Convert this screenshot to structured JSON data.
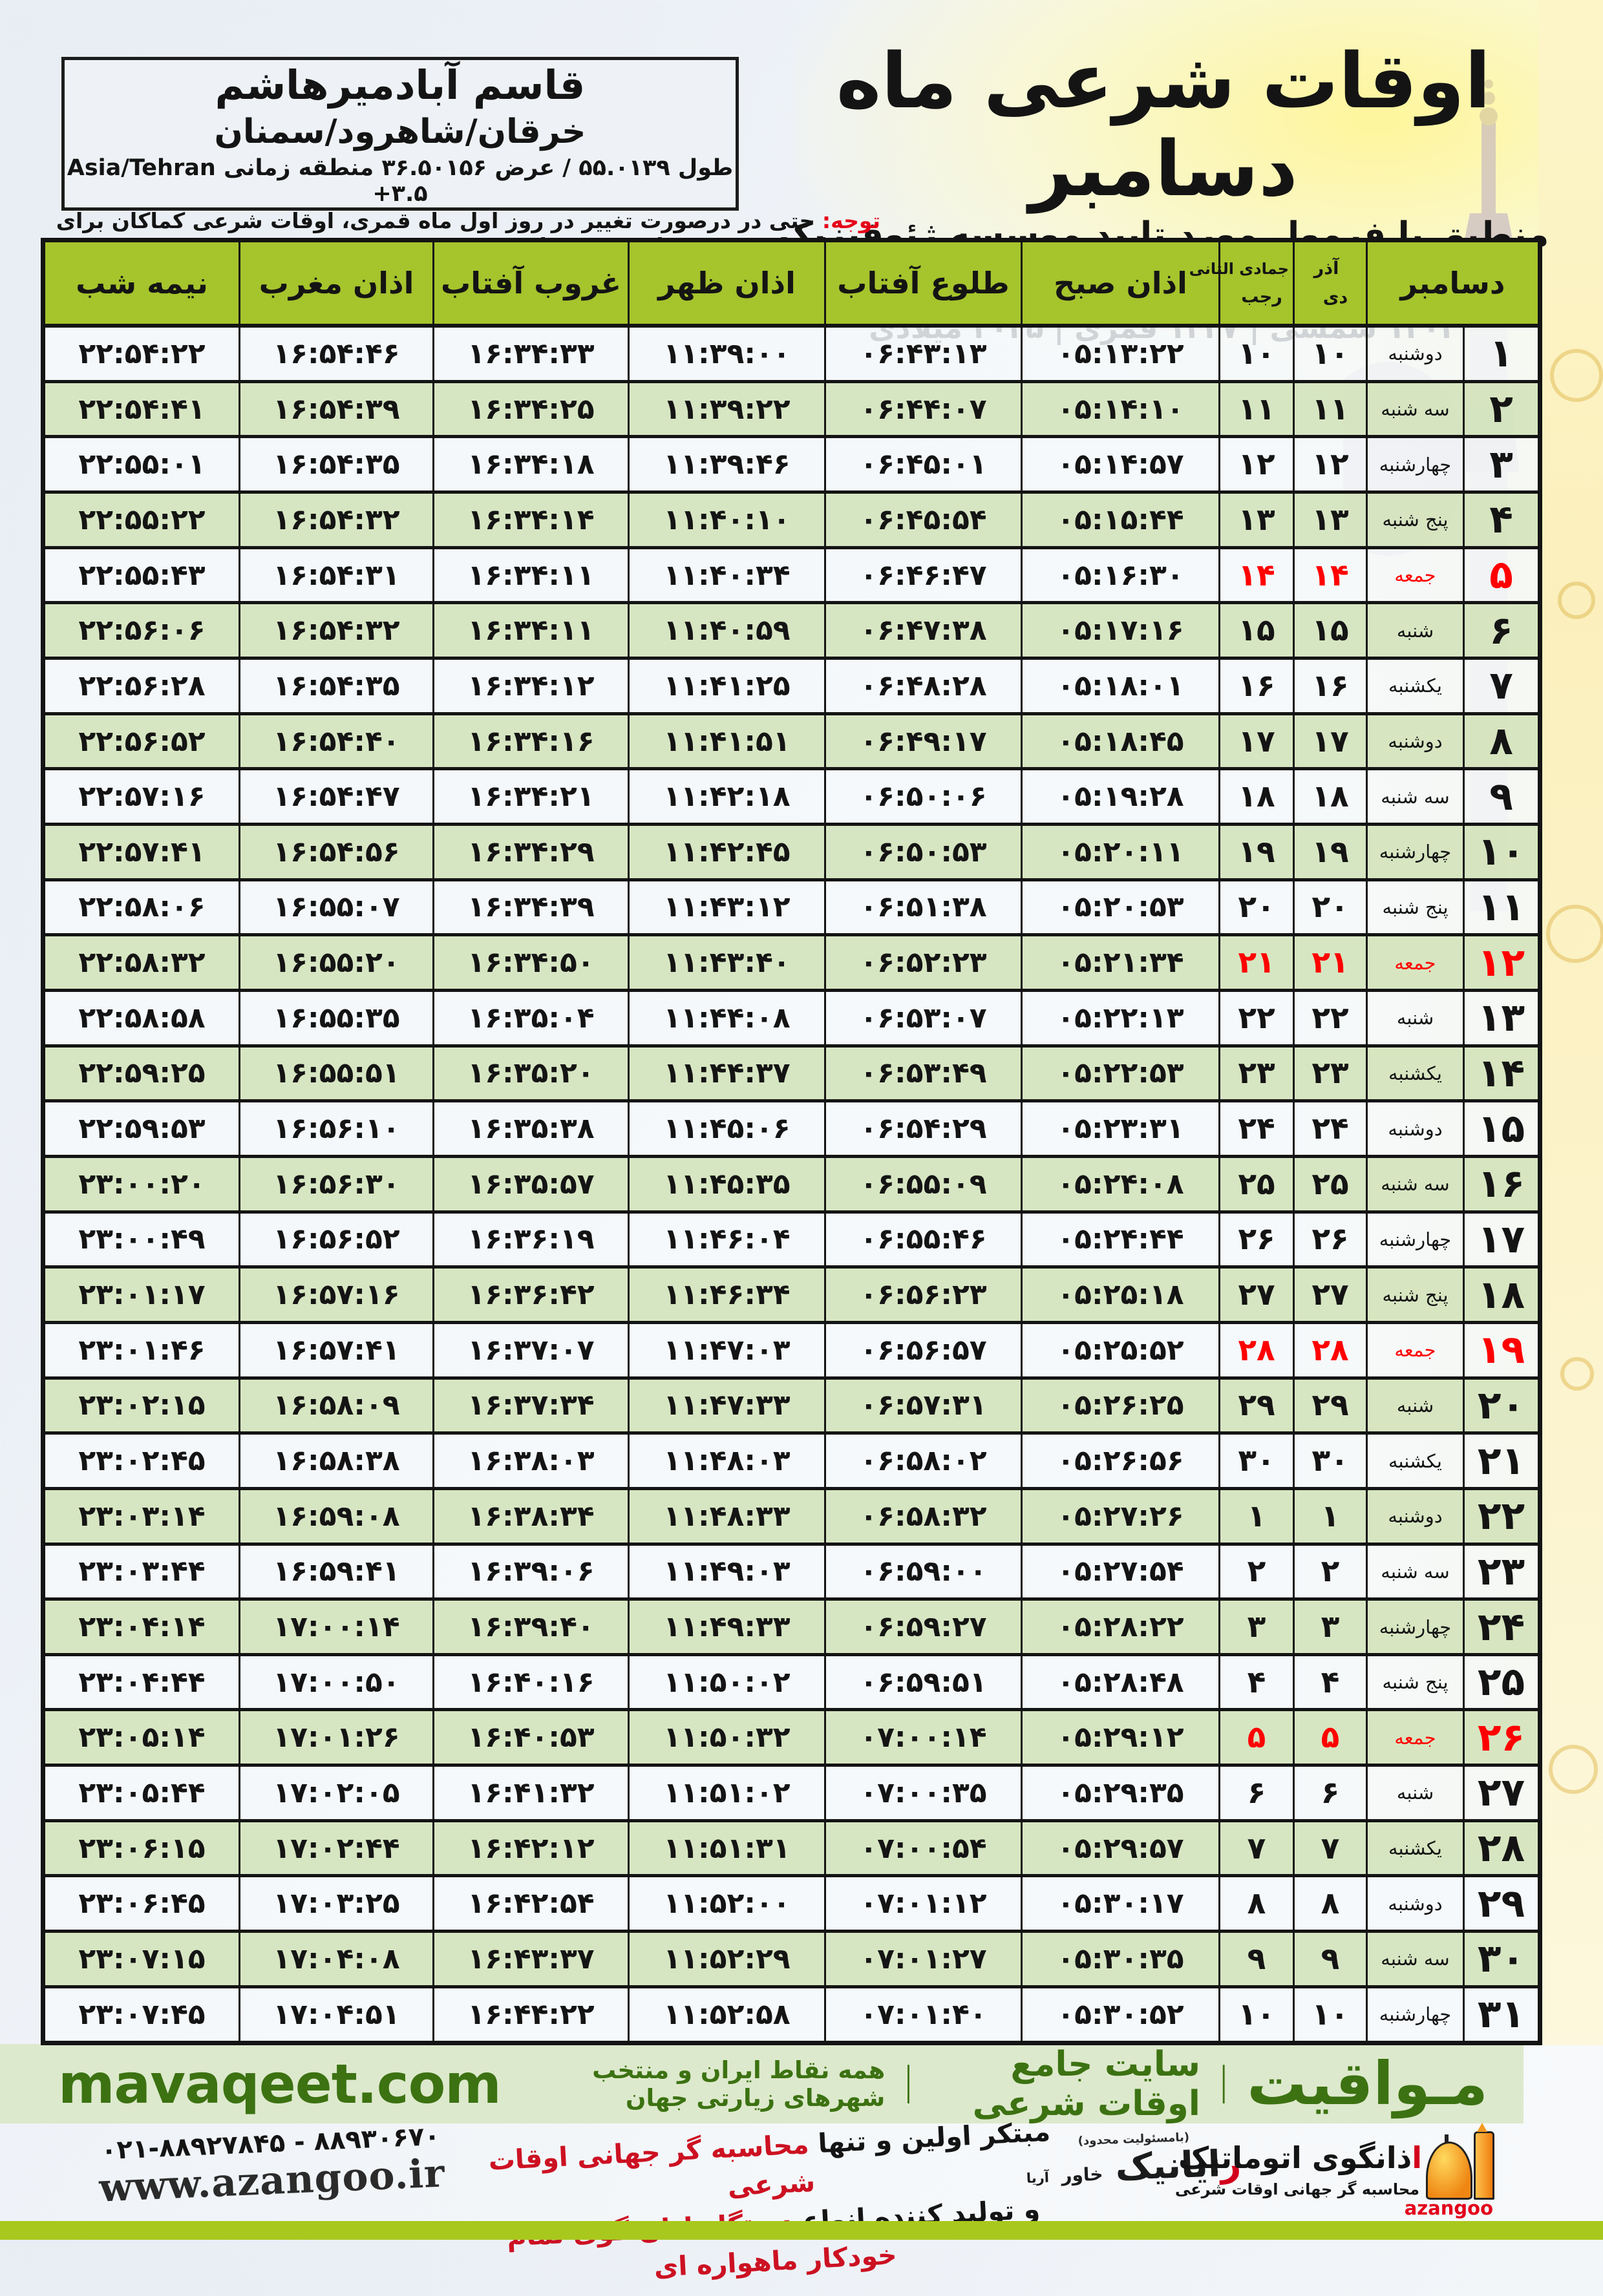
{
  "colors": {
    "header_green": "#a6c42c",
    "row_green": "#d5e5c0",
    "friday_red": "#ff0000",
    "notice_red": "#e50019",
    "footer_bg": "#dde9cc",
    "footer_green": "#3c7212",
    "bottom_lime": "#a9c81d"
  },
  "header": {
    "title": "اوقات شرعی ماه دسامبر",
    "subtitle": "منطبق با فرمول مورد تایید موسسه ژئوفیزیک دانشگاه تهران",
    "era_line": "۱۴۰۴ شمسی | ۱۴۴۷ قمری | ۲۰۲۵ میلادی"
  },
  "location": {
    "name": "قاسم آبادمیرهاشم",
    "region": "خرقان/شاهرود/سمنان",
    "coords": "طول ۵۵.۰۱۳۹ / عرض ۳۶.۵۰۱۵۶ منطقه زمانی",
    "timezone": "Asia/Tehran +۳.۵"
  },
  "notice": {
    "label": "توجه:",
    "text": " حتی در درصورت تغییر در روز اول ماه قمری، اوقات شرعی کماکان برای روزهای شمسی و میلادی معتبر است."
  },
  "table": {
    "headers": {
      "december": "دسامبر",
      "persian_top": "آذر",
      "persian_bottom": "دی",
      "hijri_top": "جمادی الثانی",
      "hijri_bottom": "رجب",
      "fajr": "اذان صبح",
      "sunrise": "طلوع آفتاب",
      "dhuhr": "اذان ظهر",
      "sunset": "غروب آفتاب",
      "maghrib": "اذان مغرب",
      "midnight": "نیمه شب"
    },
    "rows": [
      {
        "day": "۱",
        "weekday": "دوشنبه",
        "pday": "۱۰",
        "hday": "۱۰",
        "fajr": "۰۵:۱۳:۲۲",
        "sunrise": "۰۶:۴۳:۱۳",
        "dhuhr": "۱۱:۳۹:۰۰",
        "sunset": "۱۶:۳۴:۳۳",
        "maghrib": "۱۶:۵۴:۴۶",
        "midnight": "۲۲:۵۴:۲۲",
        "friday": false
      },
      {
        "day": "۲",
        "weekday": "سه شنبه",
        "pday": "۱۱",
        "hday": "۱۱",
        "fajr": "۰۵:۱۴:۱۰",
        "sunrise": "۰۶:۴۴:۰۷",
        "dhuhr": "۱۱:۳۹:۲۲",
        "sunset": "۱۶:۳۴:۲۵",
        "maghrib": "۱۶:۵۴:۳۹",
        "midnight": "۲۲:۵۴:۴۱",
        "friday": false
      },
      {
        "day": "۳",
        "weekday": "چهارشنبه",
        "pday": "۱۲",
        "hday": "۱۲",
        "fajr": "۰۵:۱۴:۵۷",
        "sunrise": "۰۶:۴۵:۰۱",
        "dhuhr": "۱۱:۳۹:۴۶",
        "sunset": "۱۶:۳۴:۱۸",
        "maghrib": "۱۶:۵۴:۳۵",
        "midnight": "۲۲:۵۵:۰۱",
        "friday": false
      },
      {
        "day": "۴",
        "weekday": "پنج شنبه",
        "pday": "۱۳",
        "hday": "۱۳",
        "fajr": "۰۵:۱۵:۴۴",
        "sunrise": "۰۶:۴۵:۵۴",
        "dhuhr": "۱۱:۴۰:۱۰",
        "sunset": "۱۶:۳۴:۱۴",
        "maghrib": "۱۶:۵۴:۳۲",
        "midnight": "۲۲:۵۵:۲۲",
        "friday": false
      },
      {
        "day": "۵",
        "weekday": "جمعه",
        "pday": "۱۴",
        "hday": "۱۴",
        "fajr": "۰۵:۱۶:۳۰",
        "sunrise": "۰۶:۴۶:۴۷",
        "dhuhr": "۱۱:۴۰:۳۴",
        "sunset": "۱۶:۳۴:۱۱",
        "maghrib": "۱۶:۵۴:۳۱",
        "midnight": "۲۲:۵۵:۴۳",
        "friday": true
      },
      {
        "day": "۶",
        "weekday": "شنبه",
        "pday": "۱۵",
        "hday": "۱۵",
        "fajr": "۰۵:۱۷:۱۶",
        "sunrise": "۰۶:۴۷:۳۸",
        "dhuhr": "۱۱:۴۰:۵۹",
        "sunset": "۱۶:۳۴:۱۱",
        "maghrib": "۱۶:۵۴:۳۲",
        "midnight": "۲۲:۵۶:۰۶",
        "friday": false
      },
      {
        "day": "۷",
        "weekday": "یکشنبه",
        "pday": "۱۶",
        "hday": "۱۶",
        "fajr": "۰۵:۱۸:۰۱",
        "sunrise": "۰۶:۴۸:۲۸",
        "dhuhr": "۱۱:۴۱:۲۵",
        "sunset": "۱۶:۳۴:۱۲",
        "maghrib": "۱۶:۵۴:۳۵",
        "midnight": "۲۲:۵۶:۲۸",
        "friday": false
      },
      {
        "day": "۸",
        "weekday": "دوشنبه",
        "pday": "۱۷",
        "hday": "۱۷",
        "fajr": "۰۵:۱۸:۴۵",
        "sunrise": "۰۶:۴۹:۱۷",
        "dhuhr": "۱۱:۴۱:۵۱",
        "sunset": "۱۶:۳۴:۱۶",
        "maghrib": "۱۶:۵۴:۴۰",
        "midnight": "۲۲:۵۶:۵۲",
        "friday": false
      },
      {
        "day": "۹",
        "weekday": "سه شنبه",
        "pday": "۱۸",
        "hday": "۱۸",
        "fajr": "۰۵:۱۹:۲۸",
        "sunrise": "۰۶:۵۰:۰۶",
        "dhuhr": "۱۱:۴۲:۱۸",
        "sunset": "۱۶:۳۴:۲۱",
        "maghrib": "۱۶:۵۴:۴۷",
        "midnight": "۲۲:۵۷:۱۶",
        "friday": false
      },
      {
        "day": "۱۰",
        "weekday": "چهارشنبه",
        "pday": "۱۹",
        "hday": "۱۹",
        "fajr": "۰۵:۲۰:۱۱",
        "sunrise": "۰۶:۵۰:۵۳",
        "dhuhr": "۱۱:۴۲:۴۵",
        "sunset": "۱۶:۳۴:۲۹",
        "maghrib": "۱۶:۵۴:۵۶",
        "midnight": "۲۲:۵۷:۴۱",
        "friday": false
      },
      {
        "day": "۱۱",
        "weekday": "پنج شنبه",
        "pday": "۲۰",
        "hday": "۲۰",
        "fajr": "۰۵:۲۰:۵۳",
        "sunrise": "۰۶:۵۱:۳۸",
        "dhuhr": "۱۱:۴۳:۱۲",
        "sunset": "۱۶:۳۴:۳۹",
        "maghrib": "۱۶:۵۵:۰۷",
        "midnight": "۲۲:۵۸:۰۶",
        "friday": false
      },
      {
        "day": "۱۲",
        "weekday": "جمعه",
        "pday": "۲۱",
        "hday": "۲۱",
        "fajr": "۰۵:۲۱:۳۴",
        "sunrise": "۰۶:۵۲:۲۳",
        "dhuhr": "۱۱:۴۳:۴۰",
        "sunset": "۱۶:۳۴:۵۰",
        "maghrib": "۱۶:۵۵:۲۰",
        "midnight": "۲۲:۵۸:۳۲",
        "friday": true
      },
      {
        "day": "۱۳",
        "weekday": "شنبه",
        "pday": "۲۲",
        "hday": "۲۲",
        "fajr": "۰۵:۲۲:۱۳",
        "sunrise": "۰۶:۵۳:۰۷",
        "dhuhr": "۱۱:۴۴:۰۸",
        "sunset": "۱۶:۳۵:۰۴",
        "maghrib": "۱۶:۵۵:۳۵",
        "midnight": "۲۲:۵۸:۵۸",
        "friday": false
      },
      {
        "day": "۱۴",
        "weekday": "یکشنبه",
        "pday": "۲۳",
        "hday": "۲۳",
        "fajr": "۰۵:۲۲:۵۳",
        "sunrise": "۰۶:۵۳:۴۹",
        "dhuhr": "۱۱:۴۴:۳۷",
        "sunset": "۱۶:۳۵:۲۰",
        "maghrib": "۱۶:۵۵:۵۱",
        "midnight": "۲۲:۵۹:۲۵",
        "friday": false
      },
      {
        "day": "۱۵",
        "weekday": "دوشنبه",
        "pday": "۲۴",
        "hday": "۲۴",
        "fajr": "۰۵:۲۳:۳۱",
        "sunrise": "۰۶:۵۴:۲۹",
        "dhuhr": "۱۱:۴۵:۰۶",
        "sunset": "۱۶:۳۵:۳۸",
        "maghrib": "۱۶:۵۶:۱۰",
        "midnight": "۲۲:۵۹:۵۳",
        "friday": false
      },
      {
        "day": "۱۶",
        "weekday": "سه شنبه",
        "pday": "۲۵",
        "hday": "۲۵",
        "fajr": "۰۵:۲۴:۰۸",
        "sunrise": "۰۶:۵۵:۰۹",
        "dhuhr": "۱۱:۴۵:۳۵",
        "sunset": "۱۶:۳۵:۵۷",
        "maghrib": "۱۶:۵۶:۳۰",
        "midnight": "۲۳:۰۰:۲۰",
        "friday": false
      },
      {
        "day": "۱۷",
        "weekday": "چهارشنبه",
        "pday": "۲۶",
        "hday": "۲۶",
        "fajr": "۰۵:۲۴:۴۴",
        "sunrise": "۰۶:۵۵:۴۶",
        "dhuhr": "۱۱:۴۶:۰۴",
        "sunset": "۱۶:۳۶:۱۹",
        "maghrib": "۱۶:۵۶:۵۲",
        "midnight": "۲۳:۰۰:۴۹",
        "friday": false
      },
      {
        "day": "۱۸",
        "weekday": "پنج شنبه",
        "pday": "۲۷",
        "hday": "۲۷",
        "fajr": "۰۵:۲۵:۱۸",
        "sunrise": "۰۶:۵۶:۲۳",
        "dhuhr": "۱۱:۴۶:۳۴",
        "sunset": "۱۶:۳۶:۴۲",
        "maghrib": "۱۶:۵۷:۱۶",
        "midnight": "۲۳:۰۱:۱۷",
        "friday": false
      },
      {
        "day": "۱۹",
        "weekday": "جمعه",
        "pday": "۲۸",
        "hday": "۲۸",
        "fajr": "۰۵:۲۵:۵۲",
        "sunrise": "۰۶:۵۶:۵۷",
        "dhuhr": "۱۱:۴۷:۰۳",
        "sunset": "۱۶:۳۷:۰۷",
        "maghrib": "۱۶:۵۷:۴۱",
        "midnight": "۲۳:۰۱:۴۶",
        "friday": true
      },
      {
        "day": "۲۰",
        "weekday": "شنبه",
        "pday": "۲۹",
        "hday": "۲۹",
        "fajr": "۰۵:۲۶:۲۵",
        "sunrise": "۰۶:۵۷:۳۱",
        "dhuhr": "۱۱:۴۷:۳۳",
        "sunset": "۱۶:۳۷:۳۴",
        "maghrib": "۱۶:۵۸:۰۹",
        "midnight": "۲۳:۰۲:۱۵",
        "friday": false
      },
      {
        "day": "۲۱",
        "weekday": "یکشنبه",
        "pday": "۳۰",
        "hday": "۳۰",
        "fajr": "۰۵:۲۶:۵۶",
        "sunrise": "۰۶:۵۸:۰۲",
        "dhuhr": "۱۱:۴۸:۰۳",
        "sunset": "۱۶:۳۸:۰۳",
        "maghrib": "۱۶:۵۸:۳۸",
        "midnight": "۲۳:۰۲:۴۵",
        "friday": false
      },
      {
        "day": "۲۲",
        "weekday": "دوشنبه",
        "pday": "۱",
        "hday": "۱",
        "fajr": "۰۵:۲۷:۲۶",
        "sunrise": "۰۶:۵۸:۳۲",
        "dhuhr": "۱۱:۴۸:۳۳",
        "sunset": "۱۶:۳۸:۳۴",
        "maghrib": "۱۶:۵۹:۰۸",
        "midnight": "۲۳:۰۳:۱۴",
        "friday": false
      },
      {
        "day": "۲۳",
        "weekday": "سه شنبه",
        "pday": "۲",
        "hday": "۲",
        "fajr": "۰۵:۲۷:۵۴",
        "sunrise": "۰۶:۵۹:۰۰",
        "dhuhr": "۱۱:۴۹:۰۳",
        "sunset": "۱۶:۳۹:۰۶",
        "maghrib": "۱۶:۵۹:۴۱",
        "midnight": "۲۳:۰۳:۴۴",
        "friday": false
      },
      {
        "day": "۲۴",
        "weekday": "چهارشنبه",
        "pday": "۳",
        "hday": "۳",
        "fajr": "۰۵:۲۸:۲۲",
        "sunrise": "۰۶:۵۹:۲۷",
        "dhuhr": "۱۱:۴۹:۳۳",
        "sunset": "۱۶:۳۹:۴۰",
        "maghrib": "۱۷:۰۰:۱۴",
        "midnight": "۲۳:۰۴:۱۴",
        "friday": false
      },
      {
        "day": "۲۵",
        "weekday": "پنج شنبه",
        "pday": "۴",
        "hday": "۴",
        "fajr": "۰۵:۲۸:۴۸",
        "sunrise": "۰۶:۵۹:۵۱",
        "dhuhr": "۱۱:۵۰:۰۲",
        "sunset": "۱۶:۴۰:۱۶",
        "maghrib": "۱۷:۰۰:۵۰",
        "midnight": "۲۳:۰۴:۴۴",
        "friday": false
      },
      {
        "day": "۲۶",
        "weekday": "جمعه",
        "pday": "۵",
        "hday": "۵",
        "fajr": "۰۵:۲۹:۱۲",
        "sunrise": "۰۷:۰۰:۱۴",
        "dhuhr": "۱۱:۵۰:۳۲",
        "sunset": "۱۶:۴۰:۵۳",
        "maghrib": "۱۷:۰۱:۲۶",
        "midnight": "۲۳:۰۵:۱۴",
        "friday": true
      },
      {
        "day": "۲۷",
        "weekday": "شنبه",
        "pday": "۶",
        "hday": "۶",
        "fajr": "۰۵:۲۹:۳۵",
        "sunrise": "۰۷:۰۰:۳۵",
        "dhuhr": "۱۱:۵۱:۰۲",
        "sunset": "۱۶:۴۱:۳۲",
        "maghrib": "۱۷:۰۲:۰۵",
        "midnight": "۲۳:۰۵:۴۴",
        "friday": false
      },
      {
        "day": "۲۸",
        "weekday": "یکشنبه",
        "pday": "۷",
        "hday": "۷",
        "fajr": "۰۵:۲۹:۵۷",
        "sunrise": "۰۷:۰۰:۵۴",
        "dhuhr": "۱۱:۵۱:۳۱",
        "sunset": "۱۶:۴۲:۱۲",
        "maghrib": "۱۷:۰۲:۴۴",
        "midnight": "۲۳:۰۶:۱۵",
        "friday": false
      },
      {
        "day": "۲۹",
        "weekday": "دوشنبه",
        "pday": "۸",
        "hday": "۸",
        "fajr": "۰۵:۳۰:۱۷",
        "sunrise": "۰۷:۰۱:۱۲",
        "dhuhr": "۱۱:۵۲:۰۰",
        "sunset": "۱۶:۴۲:۵۴",
        "maghrib": "۱۷:۰۳:۲۵",
        "midnight": "۲۳:۰۶:۴۵",
        "friday": false
      },
      {
        "day": "۳۰",
        "weekday": "سه شنبه",
        "pday": "۹",
        "hday": "۹",
        "fajr": "۰۵:۳۰:۳۵",
        "sunrise": "۰۷:۰۱:۲۷",
        "dhuhr": "۱۱:۵۲:۲۹",
        "sunset": "۱۶:۴۳:۳۷",
        "maghrib": "۱۷:۰۴:۰۸",
        "midnight": "۲۳:۰۷:۱۵",
        "friday": false
      },
      {
        "day": "۳۱",
        "weekday": "چهارشنبه",
        "pday": "۱۰",
        "hday": "۱۰",
        "fajr": "۰۵:۳۰:۵۲",
        "sunrise": "۰۷:۰۱:۴۰",
        "dhuhr": "۱۱:۵۲:۵۸",
        "sunset": "۱۶:۴۴:۲۲",
        "maghrib": "۱۷:۰۴:۵۱",
        "midnight": "۲۳:۰۷:۴۵",
        "friday": false
      }
    ]
  },
  "footer": {
    "brand": "مـواقیت",
    "sep": "|",
    "tagline1": "سایت جامع اوقات شرعی",
    "tagline2": "همه نقاط ایران و منتخب شهرهای زیارتی جهان",
    "site": "mavaqeet.com"
  },
  "bottom": {
    "phone": "۰۲۱-۸۸۹۲۷۸۴۵ - ۸۸۹۳۰۶۷۰",
    "url": "www.azangoo.ir",
    "slogan1_black": "مبتکر اولین و تنها ",
    "slogan1_red": "محاسبه گر جهانی اوقات شرعی",
    "slogan2_black": "و تولید کننده انواع ",
    "slogan2_red": "دستگاه اذان گوی تمام خودکار ماهواره ای",
    "rayanik_note": "(بامسئولیت محدود)",
    "rayanik_red": "ر",
    "rayanik_rest": "ایانیک",
    "rayanik_small": "خاور",
    "rayanik_tiny": "آریا",
    "azangoo_red": "ا",
    "azangoo_rest": "ذانگوی اتوماتیک",
    "azangoo_sub": "محاسبه گر جهانی اوقات شرعی",
    "azangoo_brand": "azangoo"
  }
}
